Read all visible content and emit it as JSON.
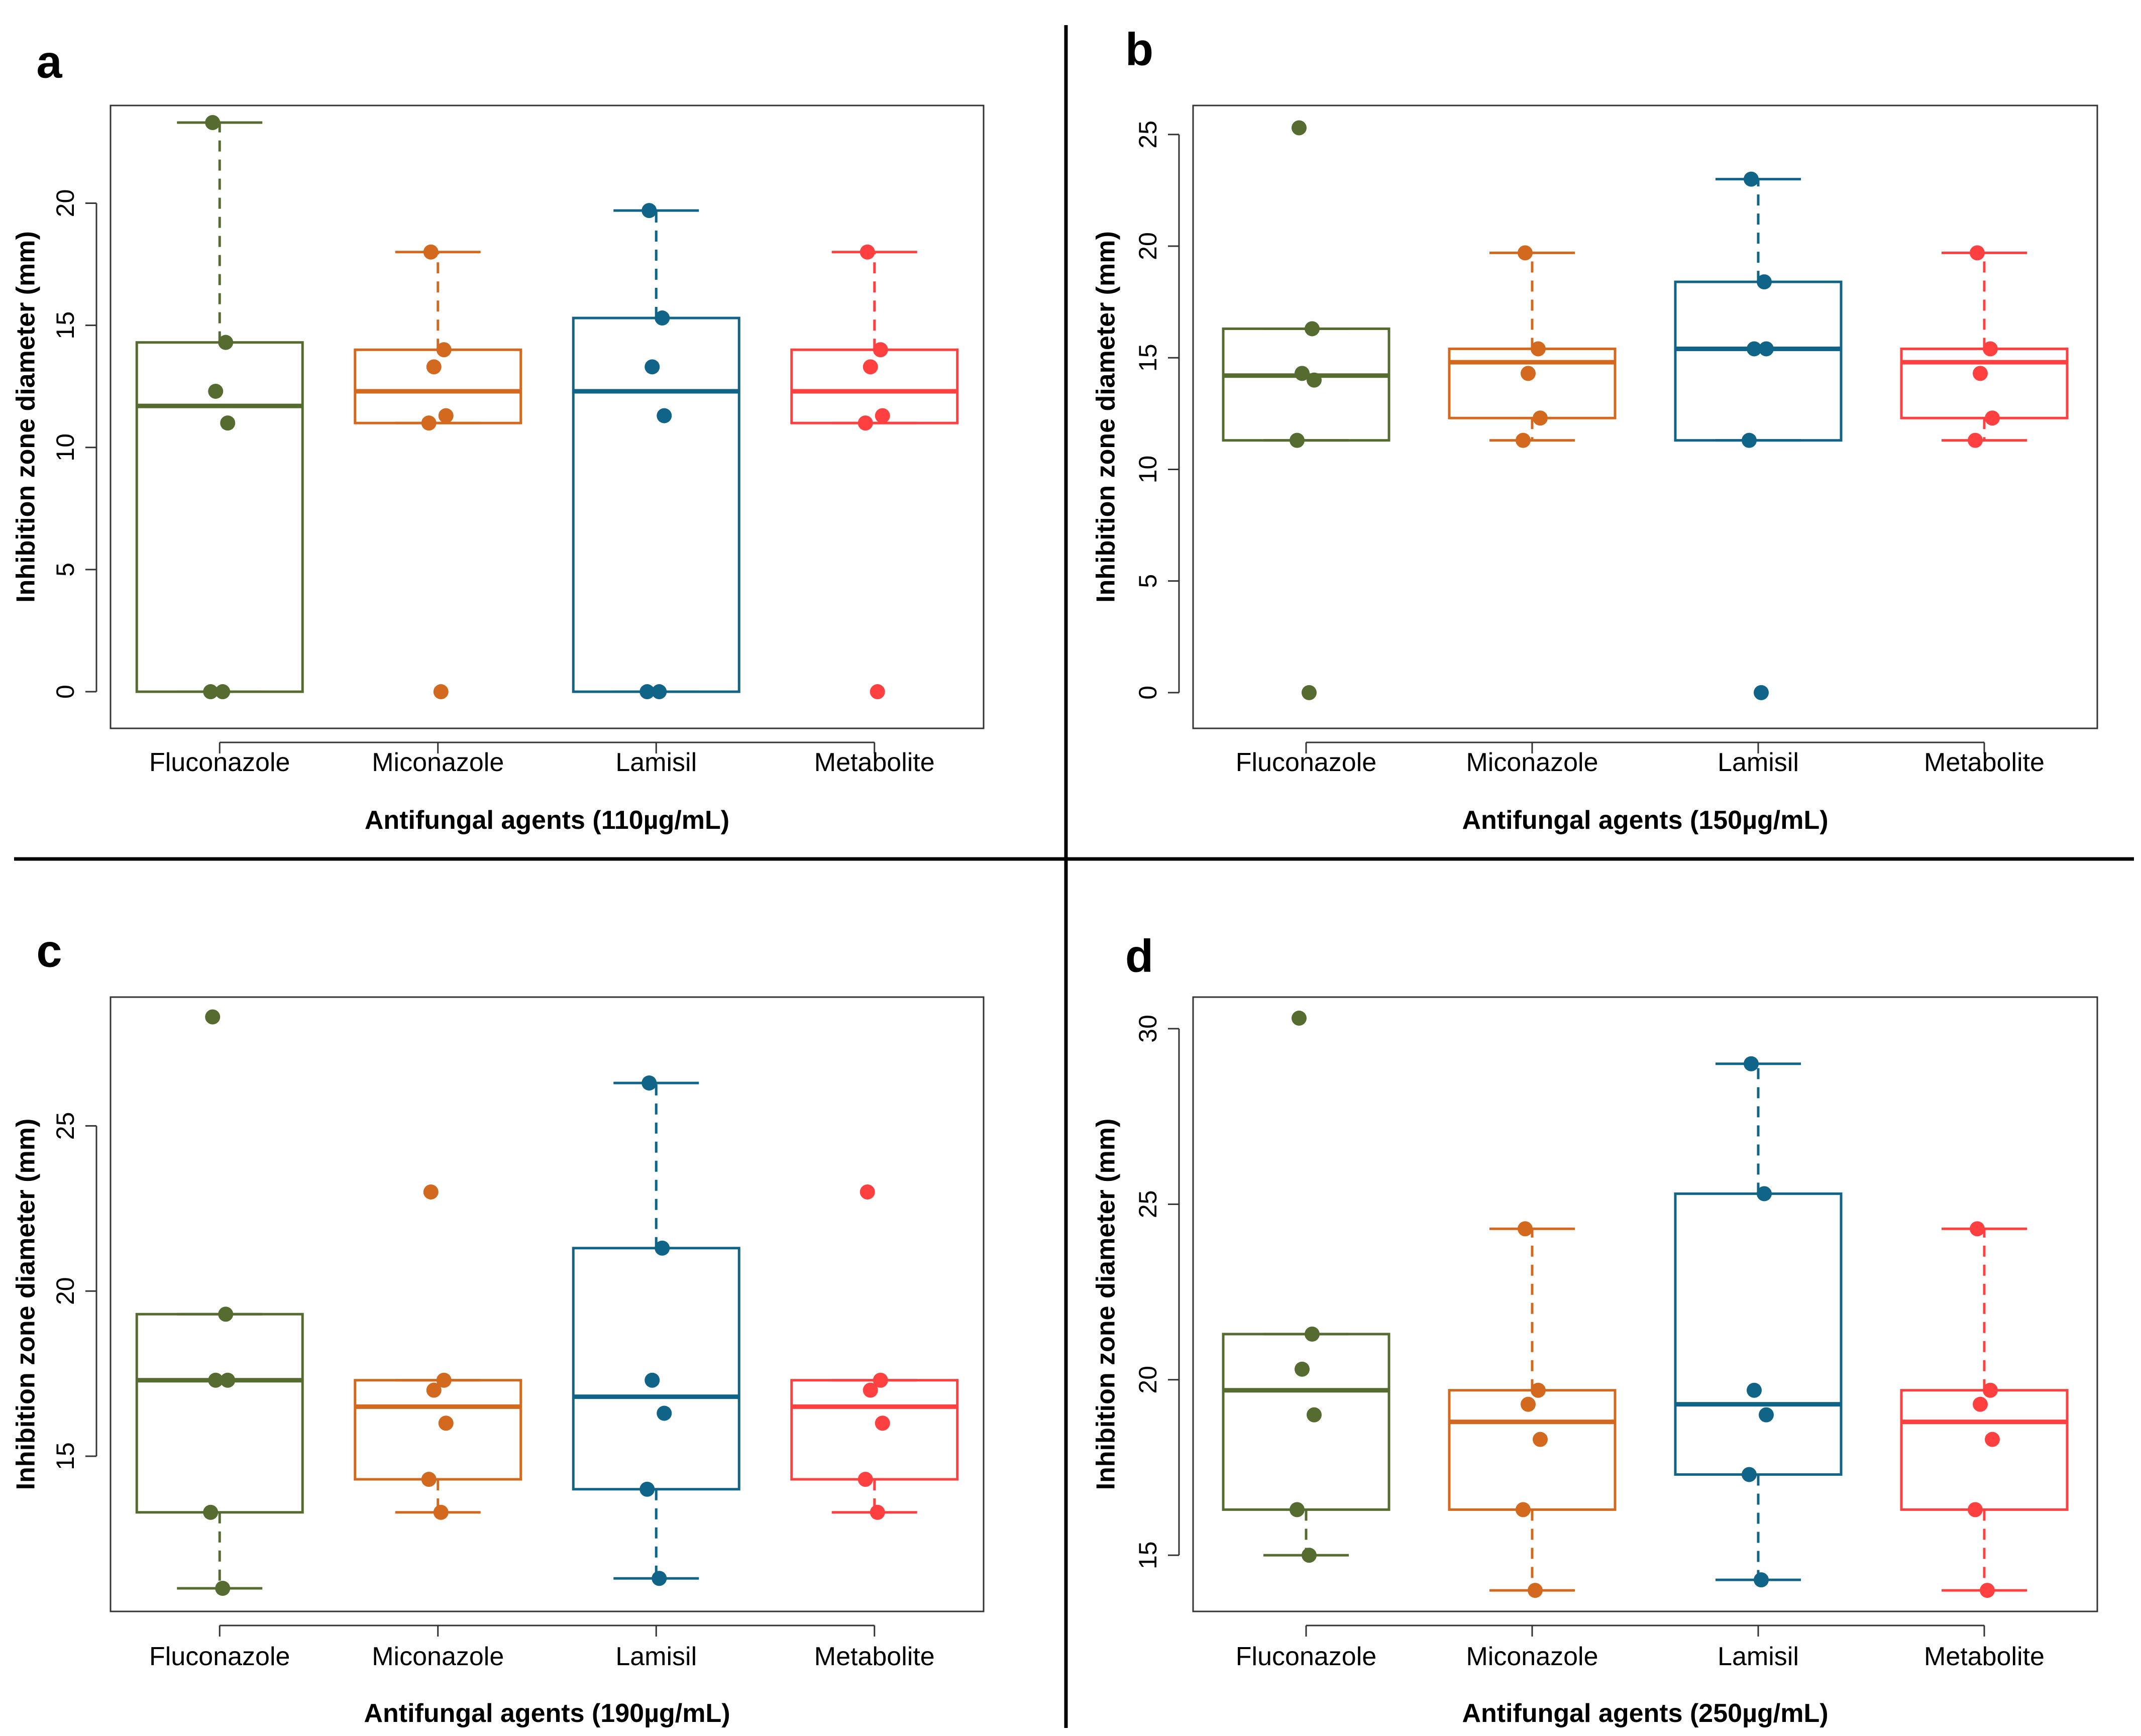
{
  "colors": {
    "Fluconazole": "#556b2f",
    "Miconazole": "#d2691e",
    "Lamisil": "#0f6487",
    "Metabolite": "#ff4040"
  },
  "chart_data": [
    {
      "type": "box",
      "panel": "a",
      "categories": [
        "Fluconazole",
        "Miconazole",
        "Lamisil",
        "Metabolite"
      ],
      "xlabel": "Antifungal agents (110µg/mL)",
      "ylabel": "Inhibition zone diameter (mm)",
      "ylim": [
        -1.5,
        24
      ],
      "yticks": [
        0,
        5,
        10,
        15,
        20
      ],
      "boxes": [
        {
          "q1": 0,
          "median": 11.7,
          "q3": 14.3,
          "whisker_low": 0,
          "whisker_high": 23.3
        },
        {
          "q1": 11,
          "median": 12.3,
          "q3": 14,
          "whisker_low": 11,
          "whisker_high": 18
        },
        {
          "q1": 0,
          "median": 12.3,
          "q3": 15.3,
          "whisker_low": 0,
          "whisker_high": 19.7
        },
        {
          "q1": 11,
          "median": 12.3,
          "q3": 14,
          "whisker_low": 11,
          "whisker_high": 18
        }
      ],
      "points": [
        [
          23.3,
          14.3,
          12.3,
          11,
          0,
          0
        ],
        [
          18,
          14,
          13.3,
          11.3,
          11,
          0
        ],
        [
          19.7,
          15.3,
          13.3,
          11.3,
          0,
          0
        ],
        [
          18,
          14,
          13.3,
          11.3,
          11,
          0
        ]
      ]
    },
    {
      "type": "box",
      "panel": "b",
      "categories": [
        "Fluconazole",
        "Miconazole",
        "Lamisil",
        "Metabolite"
      ],
      "xlabel": "Antifungal agents (150µg/mL)",
      "ylabel": "Inhibition zone diameter (mm)",
      "ylim": [
        -1.6,
        26.3
      ],
      "yticks": [
        0,
        5,
        10,
        15,
        20,
        25
      ],
      "boxes": [
        {
          "q1": 11.3,
          "median": 14.2,
          "q3": 16.3,
          "whisker_low": 11.3,
          "whisker_high": 16.3
        },
        {
          "q1": 12.3,
          "median": 14.8,
          "q3": 15.4,
          "whisker_low": 11.3,
          "whisker_high": 19.7
        },
        {
          "q1": 11.3,
          "median": 15.4,
          "q3": 18.4,
          "whisker_low": 11.3,
          "whisker_high": 23
        },
        {
          "q1": 12.3,
          "median": 14.8,
          "q3": 15.4,
          "whisker_low": 11.3,
          "whisker_high": 19.7
        }
      ],
      "points": [
        [
          25.3,
          16.3,
          14.3,
          14,
          11.3,
          0
        ],
        [
          19.7,
          15.4,
          14.3,
          12.3,
          11.3
        ],
        [
          23,
          18.4,
          15.4,
          15.4,
          11.3,
          0
        ],
        [
          19.7,
          15.4,
          14.3,
          12.3,
          11.3
        ]
      ]
    },
    {
      "type": "box",
      "panel": "c",
      "categories": [
        "Fluconazole",
        "Miconazole",
        "Lamisil",
        "Metabolite"
      ],
      "xlabel": "Antifungal agents (190µg/mL)",
      "ylabel": "Inhibition zone diameter (mm)",
      "ylim": [
        10.3,
        28.9
      ],
      "yticks": [
        15,
        20,
        25
      ],
      "boxes": [
        {
          "q1": 13.3,
          "median": 17.3,
          "q3": 19.3,
          "whisker_low": 11,
          "whisker_high": 19.3
        },
        {
          "q1": 14.3,
          "median": 16.5,
          "q3": 17.3,
          "whisker_low": 13.3,
          "whisker_high": 17.3
        },
        {
          "q1": 14,
          "median": 16.8,
          "q3": 21.3,
          "whisker_low": 11.3,
          "whisker_high": 26.3
        },
        {
          "q1": 14.3,
          "median": 16.5,
          "q3": 17.3,
          "whisker_low": 13.3,
          "whisker_high": 17.3
        }
      ],
      "points": [
        [
          28.3,
          19.3,
          17.3,
          17.3,
          13.3,
          11
        ],
        [
          23,
          17.3,
          17,
          16,
          14.3,
          13.3
        ],
        [
          26.3,
          21.3,
          17.3,
          16.3,
          14,
          11.3
        ],
        [
          23,
          17.3,
          17,
          16,
          14.3,
          13.3
        ]
      ]
    },
    {
      "type": "box",
      "panel": "d",
      "categories": [
        "Fluconazole",
        "Miconazole",
        "Lamisil",
        "Metabolite"
      ],
      "xlabel": "Antifungal agents (250µg/mL)",
      "ylabel": "Inhibition zone diameter (mm)",
      "ylim": [
        13.4,
        30.9
      ],
      "yticks": [
        15,
        20,
        25,
        30
      ],
      "boxes": [
        {
          "q1": 16.3,
          "median": 19.7,
          "q3": 21.3,
          "whisker_low": 15,
          "whisker_high": 21.3
        },
        {
          "q1": 16.3,
          "median": 18.8,
          "q3": 19.7,
          "whisker_low": 14,
          "whisker_high": 24.3
        },
        {
          "q1": 17.3,
          "median": 19.3,
          "q3": 25.3,
          "whisker_low": 14.3,
          "whisker_high": 29
        },
        {
          "q1": 16.3,
          "median": 18.8,
          "q3": 19.7,
          "whisker_low": 14,
          "whisker_high": 24.3
        }
      ],
      "points": [
        [
          30.3,
          21.3,
          20.3,
          19,
          16.3,
          15
        ],
        [
          24.3,
          19.7,
          19.3,
          18.3,
          16.3,
          14
        ],
        [
          29,
          25.3,
          19.7,
          19,
          17.3,
          14.3
        ],
        [
          24.3,
          19.7,
          19.3,
          18.3,
          16.3,
          14
        ]
      ]
    }
  ]
}
